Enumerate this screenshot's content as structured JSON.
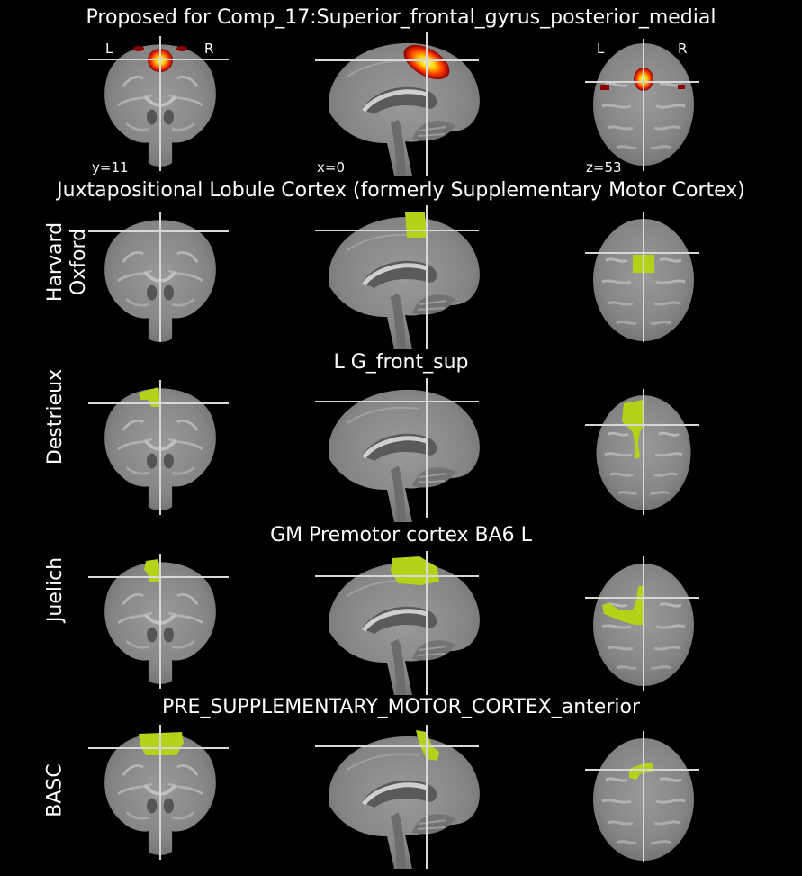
{
  "main_title": "Proposed for Comp_17:Superior_frontal_gyrus_posterior_medial",
  "orientation": {
    "left": "L",
    "right": "R"
  },
  "coords": {
    "coronal": "y=11",
    "sagittal": "x=0",
    "axial": "z=53"
  },
  "colors": {
    "background": "#000000",
    "atlas_overlay": "#b5d21a",
    "heat_low": "#8b0000",
    "heat_mid": "#ff4500",
    "heat_high": "#ffff99",
    "crosshair": "#d8d8d8"
  },
  "rows": [
    {
      "atlas": "Harvard\nOxford",
      "region": "Juxtapositional Lobule Cortex (formerly Supplementary Motor Cortex)"
    },
    {
      "atlas": "Destrieux",
      "region": "L G_front_sup"
    },
    {
      "atlas": "Juelich",
      "region": "GM Premotor cortex BA6 L"
    },
    {
      "atlas": "BASC",
      "region": "PRE_SUPPLEMENTARY_MOTOR_CORTEX_anterior"
    }
  ]
}
